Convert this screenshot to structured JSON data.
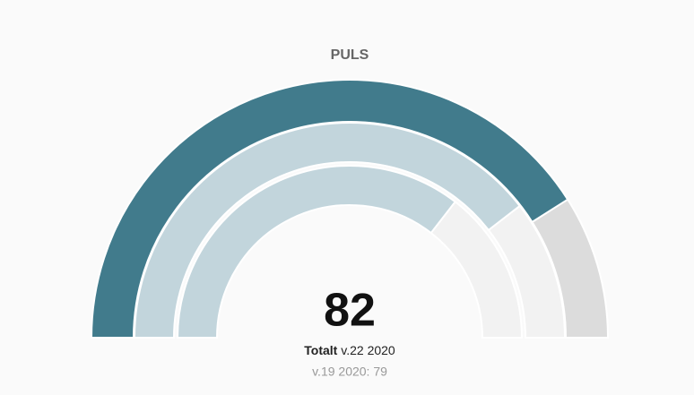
{
  "chart_data": {
    "type": "gauge",
    "title": "PULS",
    "ylim": [
      0,
      100
    ],
    "series": [
      {
        "color": "#417b8c",
        "track_color": "#dcdcdc",
        "value": 82
      },
      {
        "color": "#c2d5dc",
        "track_color": "#f2f2f2",
        "value": 79
      },
      {
        "color": "#c2d5dc",
        "track_color": "#f2f2f2",
        "value": 71
      }
    ],
    "label_bold": "Totalt",
    "label": "v.22 2020",
    "comparison": "v.19 2020: 79"
  }
}
